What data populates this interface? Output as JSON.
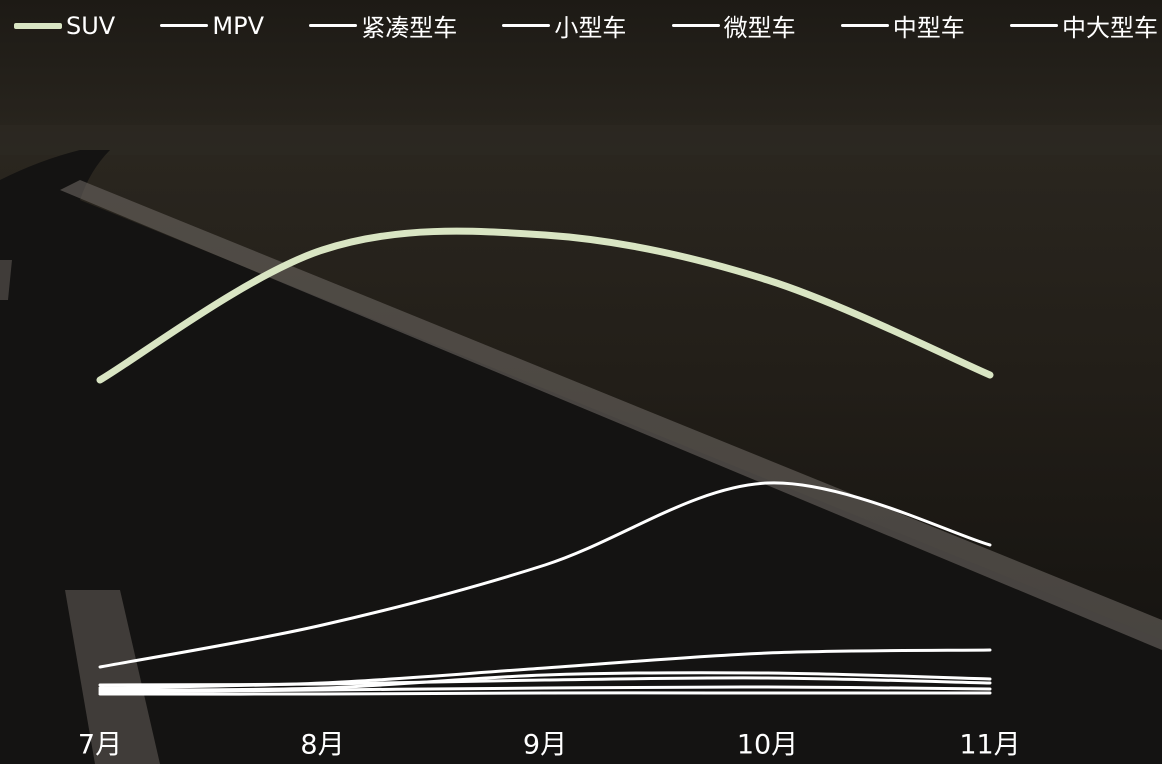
{
  "chart_data": {
    "type": "line",
    "categories": [
      "7月",
      "8月",
      "9月",
      "10月",
      "11月"
    ],
    "ylim": [
      0,
      100
    ],
    "series": [
      {
        "name": "SUV",
        "color": "#d9e5c3",
        "values": [
          64,
          90,
          93,
          84,
          65
        ]
      },
      {
        "name": "MPV",
        "color": "#ffffff",
        "values": [
          2,
          2.4,
          5,
          5.4,
          4.2
        ]
      },
      {
        "name": "紧凑型车",
        "color": "#ffffff",
        "values": [
          6.6,
          15,
          27,
          43.4,
          31
        ]
      },
      {
        "name": "小型车",
        "color": "#ffffff",
        "values": [
          2.4,
          3.4,
          6.4,
          9.4,
          10
        ]
      },
      {
        "name": "微型车",
        "color": "#ffffff",
        "values": [
          3,
          3.2,
          4,
          4.4,
          3.4
        ]
      },
      {
        "name": "中型车",
        "color": "#ffffff",
        "values": [
          1.6,
          2,
          2.4,
          2.6,
          2.2
        ]
      },
      {
        "name": "中大型车",
        "color": "#ffffff",
        "values": [
          1.2,
          1.2,
          1.4,
          1.4,
          1.4
        ]
      }
    ]
  }
}
